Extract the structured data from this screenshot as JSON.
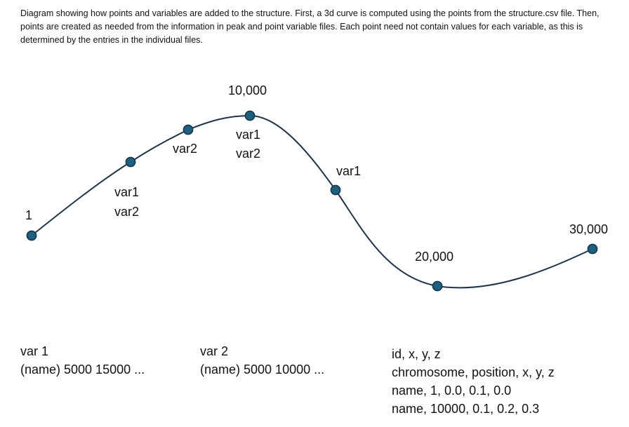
{
  "caption": "Diagram showing how points and variables are added to the structure. First, a 3d curve is computed using the points from the structure.csv file. Then,  points are created as needed from the information in peak and point variable files. Each point need not contain values for each variable, as this is determined by the entries in the individual files.",
  "colors": {
    "curve": "#1e3346",
    "point_fill": "#1f5f7f",
    "point_stroke": "#173a4f"
  },
  "curve_labels": {
    "start": "1",
    "peak": "10,000",
    "trough": "20,000",
    "end": "30,000"
  },
  "point_labels": {
    "p2": [
      "var1",
      "var2"
    ],
    "p3": [
      "var2"
    ],
    "p4": [
      "var1",
      "var2"
    ],
    "p5": [
      "var1"
    ]
  },
  "var1_file": {
    "title": "var 1",
    "line": "(name) 5000 15000 ..."
  },
  "var2_file": {
    "title": "var 2",
    "line": "(name) 5000 10000 ..."
  },
  "structure_file": {
    "lines": [
      "id, x, y, z",
      "chromosome, position, x, y, z",
      "name, 1, 0.0, 0.1, 0.0",
      "name, 10000, 0.1, 0.2, 0.3"
    ]
  }
}
